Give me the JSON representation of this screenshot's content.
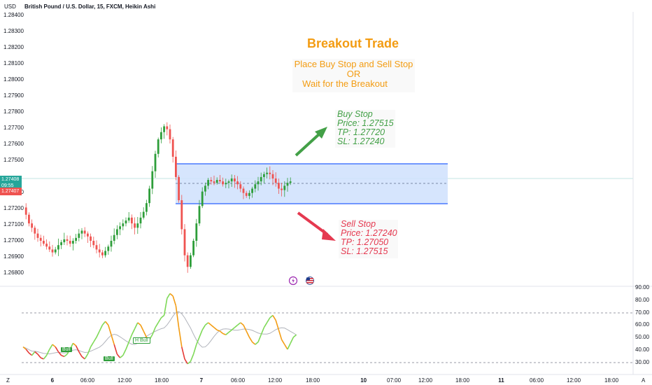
{
  "header": {
    "currency": "USD",
    "symbol_title": "British Pound / U.S. Dollar, 15, FXCM, Heikin Ashi"
  },
  "price_axis": {
    "ticks": [
      "1.28400",
      "1.28300",
      "1.28200",
      "1.28100",
      "1.28000",
      "1.27900",
      "1.27800",
      "1.27700",
      "1.27600",
      "1.27500",
      "1.27300",
      "1.27200",
      "1.27100",
      "1.27000",
      "1.26900",
      "1.26800"
    ],
    "current_price": "1.27408",
    "countdown": "09:55",
    "last_price": "1.27407"
  },
  "indicator_axis": {
    "ticks": [
      "90.00",
      "80.00",
      "70.00",
      "60.00",
      "50.00",
      "40.00",
      "30.00"
    ]
  },
  "time_axis": {
    "ticks": [
      "6",
      "06:00",
      "12:00",
      "18:00",
      "7",
      "06:00",
      "12:00",
      "18:00",
      "10",
      "07:00",
      "12:00",
      "18:00",
      "11",
      "06:00",
      "12:00",
      "18:00"
    ],
    "left_icon": "Z",
    "right_icon": "A"
  },
  "annotations": {
    "title": "Breakout Trade",
    "subtitle_line1": "Place Buy Stop and Sell Stop",
    "subtitle_line2": "OR",
    "subtitle_line3": "Wait for the Breakout",
    "buy": {
      "label": "Buy Stop",
      "price": "Price: 1.27515",
      "tp": "TP: 1.27720",
      "sl": "SL: 1.27240"
    },
    "sell": {
      "label": "Sell Stop",
      "price": "Price: 1.27240",
      "tp": "TP: 1.27050",
      "sl": "SL: 1.27515"
    },
    "bull_labels": [
      "Bull",
      "Bull",
      "H Bull"
    ]
  },
  "colors": {
    "up": "#26a69a",
    "up_green": "#2e9e3a",
    "down": "#ef5350",
    "rect_fill": "#cfe0fd",
    "rect_border": "#2962ff",
    "orange": "#f39c12",
    "buy_green": "#43a047",
    "sell_red": "#e53950",
    "current_price_tag": "#26a69a",
    "last_price_tag": "#ef5350"
  },
  "chart_data": {
    "type": "candlestick",
    "ohlc_trend": [
      1.2723,
      1.2718,
      1.2712,
      1.2709,
      1.2705,
      1.2702,
      1.27,
      1.2698,
      1.2696,
      1.2694,
      1.2692,
      1.2694,
      1.2697,
      1.2699,
      1.2701,
      1.27,
      1.2698,
      1.27,
      1.2702,
      1.2705,
      1.2707,
      1.2705,
      1.2703,
      1.27,
      1.2697,
      1.2694,
      1.2692,
      1.269,
      1.2693,
      1.2696,
      1.27,
      1.2704,
      1.2708,
      1.271,
      1.2712,
      1.2714,
      1.2716,
      1.2712,
      1.2709,
      1.2712,
      1.2716,
      1.272,
      1.2726,
      1.2736,
      1.2748,
      1.276,
      1.277,
      1.2775,
      1.2779,
      1.2777,
      1.277,
      1.2758,
      1.2744,
      1.2728,
      1.2708,
      1.269,
      1.2682,
      1.269,
      1.27,
      1.2712,
      1.2724,
      1.2734,
      1.2738,
      1.2742,
      1.2741,
      1.274,
      1.2742,
      1.2741,
      1.2739,
      1.274,
      1.2741,
      1.2743,
      1.2741,
      1.2739,
      1.2736,
      1.2733,
      1.2731,
      1.2733,
      1.2736,
      1.2739,
      1.2741,
      1.2744,
      1.2746,
      1.2747,
      1.2746,
      1.2743,
      1.274,
      1.2736,
      1.2735,
      1.2738,
      1.274,
      1.2741
    ],
    "range_box": {
      "top": 1.27515,
      "bottom": 1.2724
    },
    "indicator": [
      42,
      40,
      37,
      35,
      38,
      36,
      33,
      32,
      35,
      40,
      44,
      42,
      38,
      35,
      34,
      36,
      40,
      45,
      43,
      38,
      34,
      32,
      36,
      42,
      46,
      50,
      55,
      60,
      63,
      60,
      52,
      44,
      36,
      33,
      35,
      40,
      46,
      52,
      57,
      62,
      60,
      55,
      50,
      48,
      52,
      58,
      62,
      66,
      68,
      82,
      86,
      84,
      76,
      58,
      42,
      32,
      28,
      30,
      36,
      44,
      50,
      56,
      60,
      62,
      60,
      58,
      56,
      55,
      53,
      52,
      54,
      56,
      58,
      60,
      62,
      60,
      55,
      50,
      46,
      44,
      46,
      52,
      58,
      62,
      66,
      68,
      64,
      56,
      48,
      44,
      40,
      45,
      50,
      52
    ],
    "indicator_axis_range": [
      25,
      92
    ],
    "indicator_levels": [
      30,
      70
    ]
  }
}
